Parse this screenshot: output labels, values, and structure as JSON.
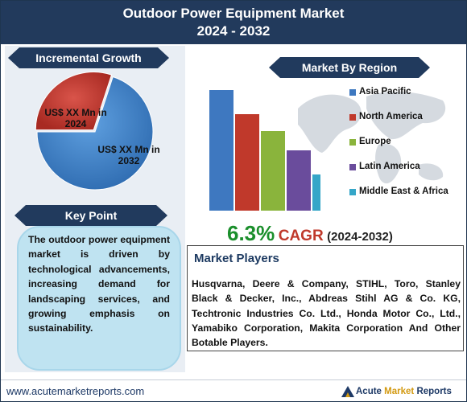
{
  "header": {
    "title_line1": "Outdoor Power Equipment Market",
    "title_line2": "2024 - 2032"
  },
  "incremental_growth": {
    "banner": "Incremental Growth",
    "label_2024_line1": "US$ XX Mn in",
    "label_2024_line2": "2024",
    "label_2032_line1": "US$ XX Mn in",
    "label_2032_line2": "2032"
  },
  "key_point": {
    "banner": "Key Point",
    "text": "The outdoor power equipment market is driven by technological advancements, increasing demand for landscaping services, and growing emphasis on sustainability."
  },
  "region": {
    "banner": "Market By Region"
  },
  "cagr": {
    "value": "6.3%",
    "label": "CAGR",
    "years": "(2024-2032)"
  },
  "players": {
    "title": "Market Players",
    "text": "Husqvarna, Deere & Company, STIHL, Toro, Stanley Black & Decker, Inc., Abdreas Stihl AG & Co. KG, Techtronic Industries Co. Ltd., Honda Motor Co., Ltd., Yamabiko Corporation, Makita Corporation And Other Botable Players."
  },
  "footer": {
    "url": "www.acutemarketreports.com",
    "brand_acute": "Acute",
    "brand_market": "Market",
    "brand_reports": "Reports"
  },
  "chart_data": [
    {
      "type": "pie",
      "categories": [
        "2024",
        "2032"
      ],
      "values": [
        30,
        70
      ],
      "colors": [
        "#c0392b",
        "#3a7fc9"
      ],
      "labels": [
        "US$ XX Mn in 2024",
        "US$ XX Mn in 2032"
      ]
    },
    {
      "type": "bar",
      "categories": [
        "Asia Pacific",
        "North America",
        "Europe",
        "Latin America",
        "Middle East & Africa"
      ],
      "values": [
        100,
        80,
        66,
        50,
        30
      ],
      "colors": [
        "#3e78c0",
        "#c0392b",
        "#8ab43c",
        "#6a4c9c",
        "#35a6c8"
      ],
      "legend": "right"
    }
  ]
}
